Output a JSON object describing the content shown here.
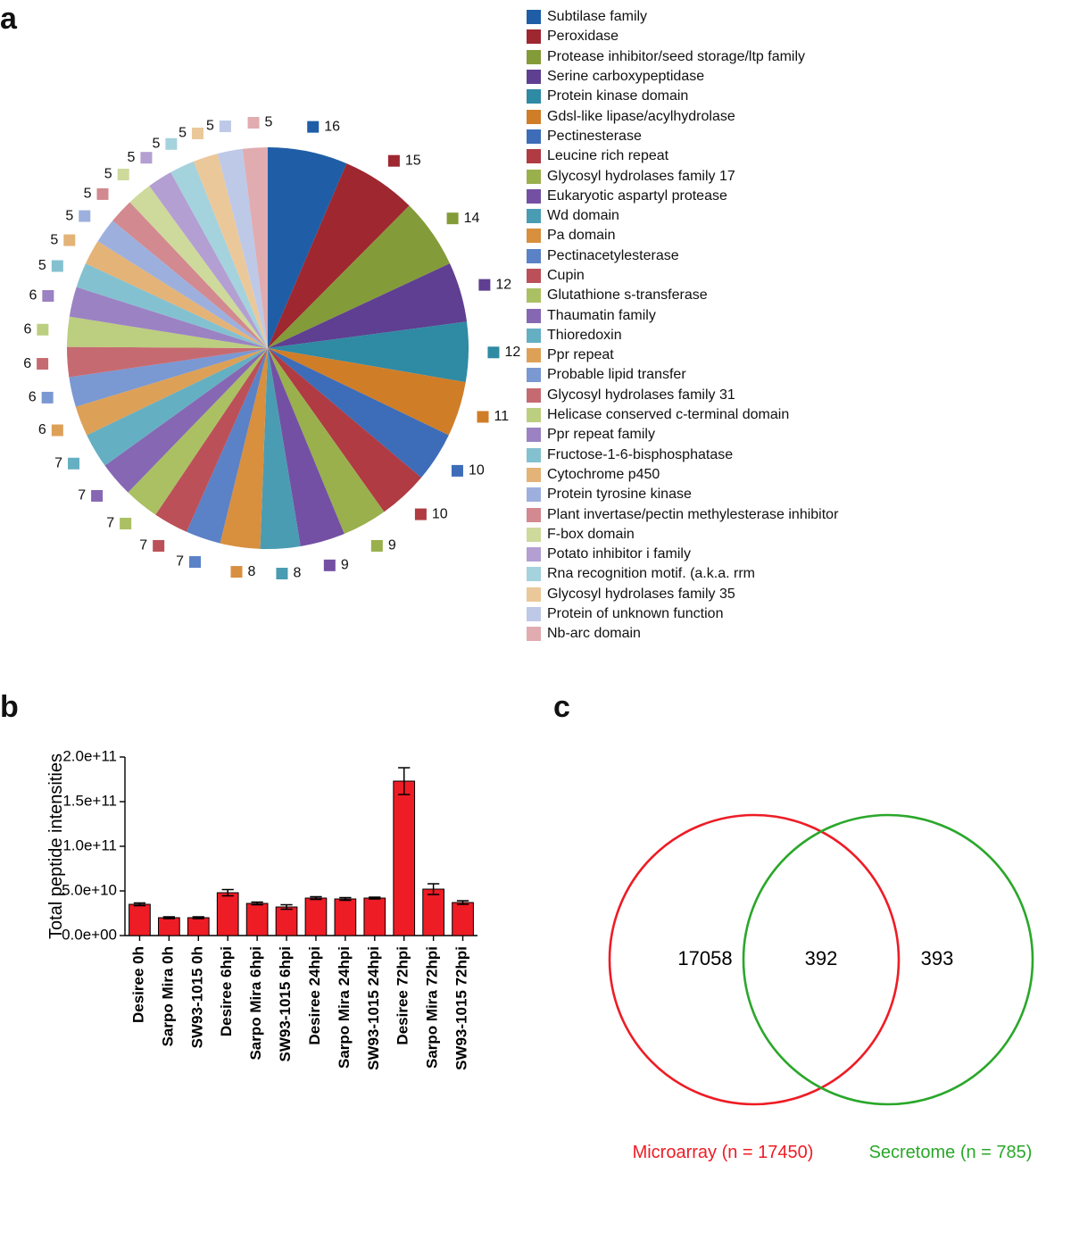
{
  "panel_a": {
    "label": "a",
    "type": "pie",
    "background": "#ffffff",
    "label_fontsize": 16,
    "legend_fontsize": 16,
    "slices": [
      {
        "name": "Subtilase family",
        "value": 16,
        "color": "#1f5ea6"
      },
      {
        "name": "Peroxidase",
        "value": 15,
        "color": "#9e2730"
      },
      {
        "name": "Protease inhibitor/seed storage/ltp family",
        "value": 14,
        "color": "#849b39"
      },
      {
        "name": "Serine carboxypeptidase",
        "value": 12,
        "color": "#5e3f91"
      },
      {
        "name": "Protein kinase domain",
        "value": 12,
        "color": "#2f8aa3"
      },
      {
        "name": "Gdsl-like lipase/acylhydrolase",
        "value": 11,
        "color": "#d07d28"
      },
      {
        "name": "Pectinesterase",
        "value": 10,
        "color": "#3d6db8"
      },
      {
        "name": "Leucine rich repeat",
        "value": 10,
        "color": "#b03b42"
      },
      {
        "name": "Glycosyl hydrolases family 17",
        "value": 9,
        "color": "#99b04d"
      },
      {
        "name": "Eukaryotic aspartyl protease",
        "value": 9,
        "color": "#7350a3"
      },
      {
        "name": "Wd domain",
        "value": 8,
        "color": "#4a9cb3"
      },
      {
        "name": "Pa domain",
        "value": 8,
        "color": "#d88f3e"
      },
      {
        "name": "Pectinacetylesterase",
        "value": 7,
        "color": "#5b81c7"
      },
      {
        "name": "Cupin",
        "value": 7,
        "color": "#bc5058"
      },
      {
        "name": "Glutathione s-transferase",
        "value": 7,
        "color": "#aac063"
      },
      {
        "name": "Thaumatin family",
        "value": 7,
        "color": "#8667b4"
      },
      {
        "name": "Thioredoxin",
        "value": 7,
        "color": "#65afc2"
      },
      {
        "name": "Ppr repeat",
        "value": 6,
        "color": "#dda057"
      },
      {
        "name": "Probable lipid transfer",
        "value": 6,
        "color": "#7a98d2"
      },
      {
        "name": "Glycosyl hydrolases family 31",
        "value": 6,
        "color": "#c66a71"
      },
      {
        "name": "Helicase conserved c-terminal domain",
        "value": 6,
        "color": "#bcce7f"
      },
      {
        "name": "Ppr repeat family",
        "value": 6,
        "color": "#9b82c3"
      },
      {
        "name": "Fructose-1-6-bisphosphatase",
        "value": 5,
        "color": "#84c1d0"
      },
      {
        "name": "Cytochrome p450",
        "value": 5,
        "color": "#e4b377"
      },
      {
        "name": "Protein tyrosine kinase",
        "value": 5,
        "color": "#9db0dd"
      },
      {
        "name": "Plant invertase/pectin methylesterase inhibitor",
        "value": 5,
        "color": "#d2898f"
      },
      {
        "name": "F-box domain",
        "value": 5,
        "color": "#ced99c"
      },
      {
        "name": "Potato inhibitor i family",
        "value": 5,
        "color": "#b39fd2"
      },
      {
        "name": "Rna recognition motif. (a.k.a. rrm",
        "value": 5,
        "color": "#a4d2dd"
      },
      {
        "name": "Glycosyl hydrolases family 35",
        "value": 5,
        "color": "#ebc89a"
      },
      {
        "name": "Protein of unknown function",
        "value": 5,
        "color": "#bdc9e7"
      },
      {
        "name": "Nb-arc domain",
        "value": 5,
        "color": "#e0acb0"
      }
    ]
  },
  "panel_b": {
    "label": "b",
    "type": "bar",
    "y_title": "Total peptide intensities",
    "y_title_fontsize": 20,
    "bar_fill": "#ee1c25",
    "bar_stroke": "#000000",
    "axis_color": "#000000",
    "ylim": [
      0,
      200000000000.0
    ],
    "yticks": [
      {
        "v": 0.0,
        "label": "0.0e+00"
      },
      {
        "v": 50000000000.0,
        "label": "5.0e+10"
      },
      {
        "v": 100000000000.0,
        "label": "1.0e+11"
      },
      {
        "v": 150000000000.0,
        "label": "1.5e+11"
      },
      {
        "v": 200000000000.0,
        "label": "2.0e+11"
      }
    ],
    "categories": [
      "Desiree 0h",
      "Sarpo Mira 0h",
      "SW93-1015 0h",
      "Desiree 6hpi",
      "Sarpo Mira 6hpi",
      "SW93-1015 6hpi",
      "Desiree 24hpi",
      "Sarpo Mira 24hpi",
      "SW93-1015 24hpi",
      "Desiree 72hpi",
      "Sarpo Mira 72hpi",
      "SW93-1015 72hpi"
    ],
    "values": [
      35000000000.0,
      20000000000.0,
      20000000000.0,
      48000000000.0,
      36000000000.0,
      32000000000.0,
      42000000000.0,
      41000000000.0,
      42000000000.0,
      173000000000.0,
      52000000000.0,
      37000000000.0
    ],
    "err": [
      1500000000.0,
      1000000000.0,
      1000000000.0,
      3500000000.0,
      1500000000.0,
      2500000000.0,
      1500000000.0,
      1500000000.0,
      1000000000.0,
      15000000000.0,
      6000000000.0,
      2000000000.0
    ],
    "bar_width": 0.72,
    "label_fontsize": 17
  },
  "panel_c": {
    "label": "c",
    "type": "venn",
    "left": {
      "color": "#ee1c25",
      "caption": "Microarray (n = 17450)",
      "count": 17058
    },
    "right": {
      "color": "#2aa72a",
      "caption": "Secretome (n = 785)",
      "count": 393
    },
    "intersection": 392,
    "stroke_width": 2.6,
    "num_fontsize": 22,
    "caption_fontsize": 20
  }
}
